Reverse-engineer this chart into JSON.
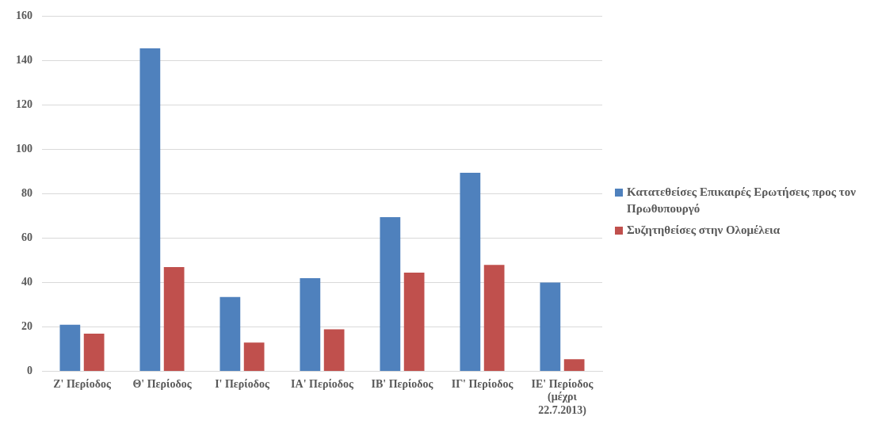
{
  "chart_data": {
    "type": "bar",
    "categories": [
      "Ζ' Περίοδος",
      "Θ' Περίοδος",
      "Ι' Περίοδος",
      "ΙΑ' Περίοδος",
      "ΙΒ' Περίοδος",
      "ΙΓ' Περίοδος",
      "ΙΕ' Περίοδος (μέχρι 22.7.2013)"
    ],
    "series": [
      {
        "name": "Κατατεθείσες Επικαιρές Ερωτήσεις προς τον Πρωθυπουργό",
        "color": "#4f81bd",
        "values": [
          21,
          145.5,
          33.5,
          42,
          69.5,
          89.5,
          40
        ]
      },
      {
        "name": "Συζητηθείσες στην Ολομέλεια",
        "color": "#c0504d",
        "values": [
          17,
          47,
          13,
          19,
          44.5,
          48,
          5.5
        ]
      }
    ],
    "ylim": [
      0,
      160
    ],
    "yticks": [
      0,
      20,
      40,
      60,
      80,
      100,
      120,
      140,
      160
    ],
    "grid": "y",
    "legend": "right"
  }
}
